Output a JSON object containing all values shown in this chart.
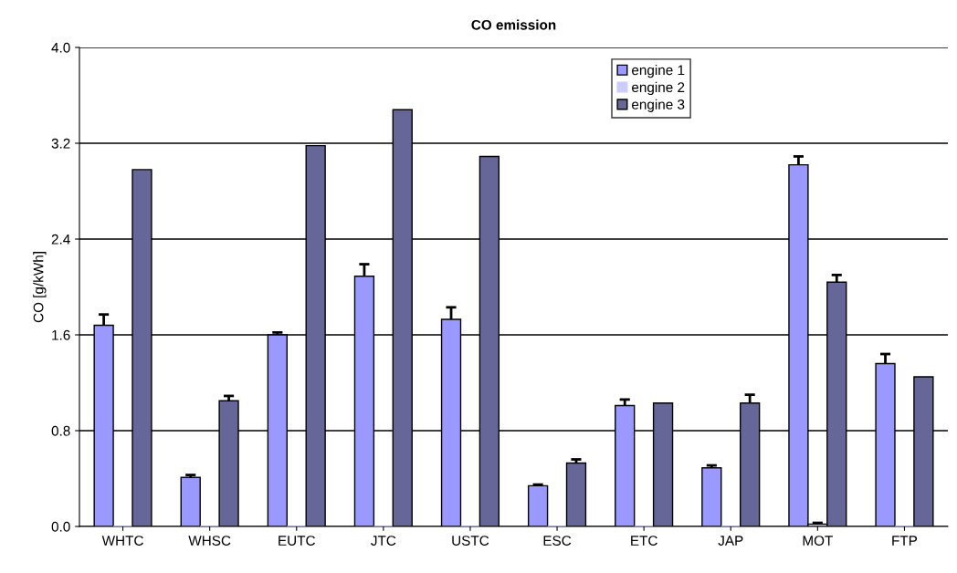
{
  "chart_data": {
    "type": "bar",
    "title": "CO emission",
    "ylabel": "CO [g/kWh]",
    "categories": [
      "WHTC",
      "WHSC",
      "EUTC",
      "JTC",
      "USTC",
      "ESC",
      "ETC",
      "JAP",
      "MOT",
      "FTP"
    ],
    "series": [
      {
        "name": "engine 1",
        "color": "#9999ff",
        "values": [
          1.68,
          0.41,
          1.6,
          2.09,
          1.73,
          0.34,
          1.01,
          0.49,
          3.02,
          1.36
        ],
        "errors": [
          0.09,
          0.02,
          0.02,
          0.1,
          0.1,
          0.01,
          0.05,
          0.02,
          0.07,
          0.08
        ]
      },
      {
        "name": "engine 2",
        "color": "#ccccff",
        "values": [
          0,
          0,
          0,
          0,
          0,
          0,
          0,
          0,
          0.02,
          0
        ],
        "errors": [
          null,
          null,
          null,
          null,
          null,
          null,
          null,
          null,
          0.01,
          null
        ]
      },
      {
        "name": "engine 3",
        "color": "#666699",
        "values": [
          2.98,
          1.05,
          3.18,
          3.48,
          3.09,
          0.53,
          1.03,
          1.03,
          2.04,
          1.25
        ],
        "errors": [
          null,
          0.04,
          null,
          null,
          null,
          0.03,
          null,
          0.07,
          0.06,
          null
        ]
      }
    ],
    "ylim": [
      0,
      4.0
    ],
    "yticks": [
      {
        "value": 0,
        "label": "0.0"
      },
      0.8,
      1.6,
      2.4,
      3.2,
      {
        "value": 4,
        "label": "4.0"
      }
    ],
    "grid": "y",
    "legend": "top right"
  }
}
